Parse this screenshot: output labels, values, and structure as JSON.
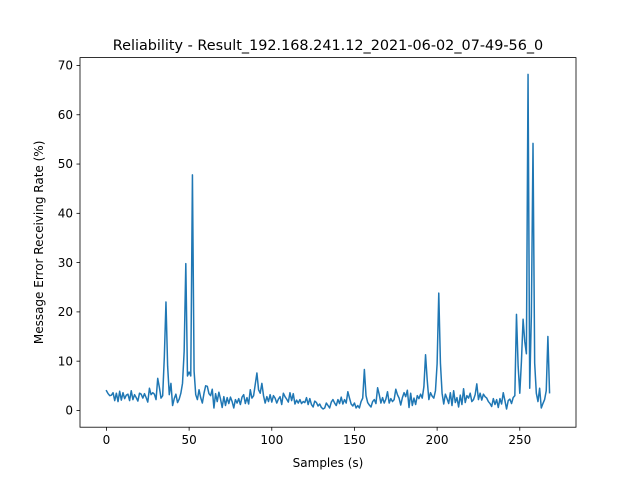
{
  "chart_data": {
    "type": "line",
    "title": "Reliability - Result_192.168.241.12_2021-06-02_07-49-56_0",
    "xlabel": "Samples (s)",
    "ylabel": "Message Error Receiving Rate (%)",
    "xlim": [
      -16,
      284
    ],
    "ylim": [
      -3.4,
      71.6
    ],
    "x_ticks": [
      0,
      50,
      100,
      150,
      200,
      250
    ],
    "y_ticks": [
      0,
      10,
      20,
      30,
      40,
      50,
      60,
      70
    ],
    "grid": false,
    "color": "#1f77b4",
    "series": [
      {
        "name": "",
        "points": [
          [
            0,
            4.0
          ],
          [
            1,
            3.4
          ],
          [
            2,
            3.0
          ],
          [
            3,
            3.1
          ],
          [
            4,
            3.6
          ],
          [
            5,
            2.0
          ],
          [
            6,
            3.5
          ],
          [
            7,
            1.8
          ],
          [
            8,
            3.9
          ],
          [
            9,
            2.1
          ],
          [
            10,
            3.6
          ],
          [
            11,
            2.4
          ],
          [
            12,
            3.1
          ],
          [
            13,
            3.3
          ],
          [
            14,
            2.0
          ],
          [
            15,
            4.0
          ],
          [
            16,
            2.2
          ],
          [
            17,
            3.2
          ],
          [
            18,
            2.6
          ],
          [
            19,
            1.9
          ],
          [
            20,
            3.5
          ],
          [
            21,
            3.3
          ],
          [
            22,
            2.5
          ],
          [
            23,
            3.4
          ],
          [
            24,
            2.6
          ],
          [
            25,
            1.7
          ],
          [
            26,
            4.5
          ],
          [
            27,
            3.2
          ],
          [
            28,
            3.6
          ],
          [
            29,
            3.3
          ],
          [
            30,
            2.2
          ],
          [
            31,
            6.5
          ],
          [
            32,
            4.7
          ],
          [
            33,
            2.5
          ],
          [
            34,
            3.0
          ],
          [
            35,
            10.8
          ],
          [
            36,
            22.0
          ],
          [
            37,
            9.0
          ],
          [
            38,
            3.2
          ],
          [
            39,
            5.5
          ],
          [
            40,
            1.0
          ],
          [
            41,
            2.4
          ],
          [
            42,
            3.3
          ],
          [
            43,
            1.6
          ],
          [
            44,
            2.3
          ],
          [
            45,
            3.5
          ],
          [
            46,
            5.5
          ],
          [
            47,
            12.0
          ],
          [
            48,
            29.8
          ],
          [
            49,
            7.0
          ],
          [
            50,
            7.8
          ],
          [
            51,
            7.0
          ],
          [
            52,
            47.8
          ],
          [
            53,
            8.0
          ],
          [
            54,
            3.2
          ],
          [
            55,
            2.2
          ],
          [
            56,
            4.2
          ],
          [
            57,
            2.6
          ],
          [
            58,
            1.5
          ],
          [
            59,
            3.5
          ],
          [
            60,
            5.0
          ],
          [
            61,
            4.9
          ],
          [
            62,
            3.4
          ],
          [
            63,
            3.0
          ],
          [
            64,
            4.3
          ],
          [
            65,
            0.5
          ],
          [
            66,
            3.4
          ],
          [
            67,
            1.8
          ],
          [
            68,
            3.7
          ],
          [
            69,
            2.3
          ],
          [
            70,
            0.6
          ],
          [
            71,
            2.8
          ],
          [
            72,
            1.0
          ],
          [
            73,
            2.6
          ],
          [
            74,
            1.4
          ],
          [
            75,
            2.7
          ],
          [
            76,
            1.8
          ],
          [
            77,
            0.5
          ],
          [
            78,
            2.2
          ],
          [
            79,
            1.5
          ],
          [
            80,
            2.4
          ],
          [
            81,
            1.2
          ],
          [
            82,
            2.7
          ],
          [
            83,
            3.2
          ],
          [
            84,
            1.4
          ],
          [
            85,
            2.6
          ],
          [
            86,
            1.3
          ],
          [
            87,
            4.2
          ],
          [
            88,
            2.5
          ],
          [
            89,
            3.0
          ],
          [
            90,
            5.3
          ],
          [
            91,
            7.6
          ],
          [
            92,
            4.2
          ],
          [
            93,
            3.5
          ],
          [
            94,
            5.5
          ],
          [
            95,
            3.0
          ],
          [
            96,
            1.5
          ],
          [
            97,
            2.8
          ],
          [
            98,
            1.8
          ],
          [
            99,
            3.2
          ],
          [
            100,
            1.7
          ],
          [
            101,
            3.0
          ],
          [
            102,
            2.5
          ],
          [
            103,
            1.5
          ],
          [
            104,
            2.3
          ],
          [
            105,
            2.8
          ],
          [
            106,
            1.2
          ],
          [
            107,
            3.5
          ],
          [
            108,
            2.8
          ],
          [
            109,
            2.3
          ],
          [
            110,
            1.7
          ],
          [
            111,
            3.6
          ],
          [
            112,
            2.0
          ],
          [
            113,
            3.4
          ],
          [
            114,
            1.3
          ],
          [
            115,
            2.1
          ],
          [
            116,
            1.5
          ],
          [
            117,
            2.2
          ],
          [
            118,
            1.4
          ],
          [
            119,
            1.8
          ],
          [
            120,
            1.6
          ],
          [
            121,
            2.6
          ],
          [
            122,
            1.2
          ],
          [
            123,
            2.4
          ],
          [
            124,
            1.2
          ],
          [
            125,
            0.7
          ],
          [
            126,
            1.9
          ],
          [
            127,
            1.6
          ],
          [
            128,
            0.9
          ],
          [
            129,
            1.3
          ],
          [
            130,
            0.6
          ],
          [
            131,
            0.3
          ],
          [
            132,
            0.5
          ],
          [
            133,
            1.5
          ],
          [
            134,
            1.0
          ],
          [
            135,
            0.5
          ],
          [
            136,
            1.7
          ],
          [
            137,
            2.2
          ],
          [
            138,
            1.5
          ],
          [
            139,
            1.0
          ],
          [
            140,
            2.2
          ],
          [
            141,
            1.4
          ],
          [
            142,
            2.7
          ],
          [
            143,
            1.3
          ],
          [
            144,
            2.2
          ],
          [
            145,
            1.5
          ],
          [
            146,
            3.8
          ],
          [
            147,
            2.5
          ],
          [
            148,
            1.3
          ],
          [
            149,
            0.9
          ],
          [
            150,
            1.5
          ],
          [
            151,
            0.5
          ],
          [
            152,
            1.0
          ],
          [
            153,
            0.5
          ],
          [
            154,
            1.8
          ],
          [
            155,
            2.5
          ],
          [
            156,
            8.3
          ],
          [
            157,
            3.0
          ],
          [
            158,
            1.6
          ],
          [
            159,
            1.1
          ],
          [
            160,
            0.7
          ],
          [
            161,
            1.8
          ],
          [
            162,
            2.2
          ],
          [
            163,
            1.4
          ],
          [
            164,
            4.6
          ],
          [
            165,
            3.2
          ],
          [
            166,
            1.5
          ],
          [
            167,
            2.6
          ],
          [
            168,
            1.5
          ],
          [
            169,
            2.3
          ],
          [
            170,
            3.8
          ],
          [
            171,
            1.5
          ],
          [
            172,
            2.4
          ],
          [
            173,
            1.8
          ],
          [
            174,
            2.2
          ],
          [
            175,
            4.3
          ],
          [
            176,
            3.2
          ],
          [
            177,
            2.5
          ],
          [
            178,
            1.1
          ],
          [
            179,
            2.6
          ],
          [
            180,
            3.6
          ],
          [
            181,
            2.8
          ],
          [
            182,
            4.1
          ],
          [
            183,
            0.6
          ],
          [
            184,
            3.5
          ],
          [
            185,
            1.0
          ],
          [
            186,
            2.5
          ],
          [
            187,
            1.2
          ],
          [
            188,
            3.0
          ],
          [
            189,
            2.4
          ],
          [
            190,
            3.3
          ],
          [
            191,
            2.5
          ],
          [
            192,
            4.8
          ],
          [
            193,
            11.3
          ],
          [
            194,
            6.2
          ],
          [
            195,
            2.2
          ],
          [
            196,
            3.6
          ],
          [
            197,
            2.9
          ],
          [
            198,
            2.5
          ],
          [
            199,
            4.0
          ],
          [
            200,
            9.5
          ],
          [
            201,
            23.8
          ],
          [
            202,
            9.6
          ],
          [
            203,
            3.5
          ],
          [
            204,
            1.3
          ],
          [
            205,
            3.3
          ],
          [
            206,
            2.4
          ],
          [
            207,
            1.4
          ],
          [
            208,
            3.6
          ],
          [
            209,
            1.0
          ],
          [
            210,
            4.0
          ],
          [
            211,
            1.6
          ],
          [
            212,
            2.6
          ],
          [
            213,
            0.7
          ],
          [
            214,
            3.1
          ],
          [
            215,
            1.2
          ],
          [
            216,
            4.4
          ],
          [
            217,
            1.6
          ],
          [
            218,
            3.0
          ],
          [
            219,
            2.5
          ],
          [
            220,
            3.5
          ],
          [
            221,
            1.8
          ],
          [
            222,
            2.2
          ],
          [
            223,
            3.2
          ],
          [
            224,
            5.4
          ],
          [
            225,
            2.2
          ],
          [
            226,
            3.5
          ],
          [
            227,
            2.1
          ],
          [
            228,
            3.3
          ],
          [
            229,
            2.8
          ],
          [
            230,
            2.5
          ],
          [
            231,
            1.8
          ],
          [
            232,
            1.4
          ],
          [
            233,
            0.8
          ],
          [
            234,
            2.4
          ],
          [
            235,
            1.2
          ],
          [
            236,
            2.2
          ],
          [
            237,
            0.6
          ],
          [
            238,
            2.4
          ],
          [
            239,
            1.3
          ],
          [
            240,
            3.6
          ],
          [
            241,
            2.0
          ],
          [
            242,
            0.3
          ],
          [
            243,
            2.0
          ],
          [
            244,
            2.3
          ],
          [
            245,
            1.4
          ],
          [
            246,
            2.6
          ],
          [
            247,
            3.0
          ],
          [
            248,
            19.5
          ],
          [
            249,
            9.0
          ],
          [
            250,
            3.5
          ],
          [
            251,
            10.0
          ],
          [
            252,
            18.5
          ],
          [
            253,
            14.0
          ],
          [
            254,
            11.5
          ],
          [
            255,
            68.2
          ],
          [
            256,
            4.5
          ],
          [
            257,
            19.2
          ],
          [
            258,
            54.2
          ],
          [
            259,
            9.6
          ],
          [
            260,
            3.5
          ],
          [
            261,
            1.8
          ],
          [
            262,
            4.5
          ],
          [
            263,
            0.5
          ],
          [
            264,
            1.4
          ],
          [
            265,
            2.2
          ],
          [
            266,
            4.0
          ],
          [
            267,
            15.0
          ],
          [
            268,
            3.6
          ]
        ]
      }
    ]
  }
}
